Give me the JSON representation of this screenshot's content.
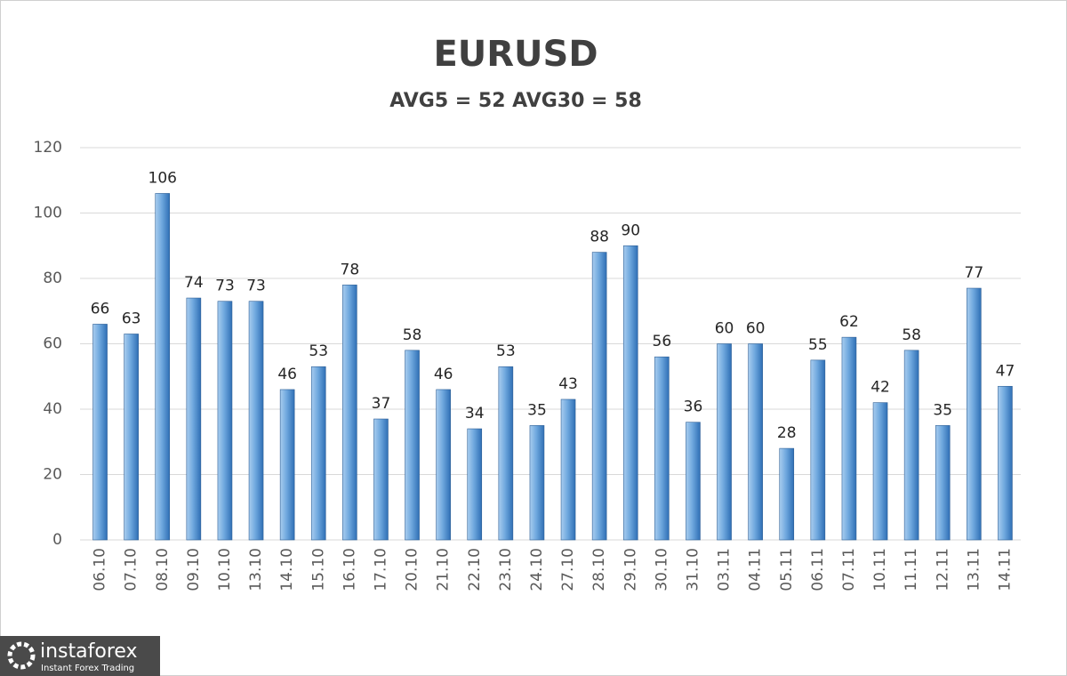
{
  "chart_data": {
    "type": "bar",
    "title": "EURUSD",
    "subtitle": "AVG5 = 52 AVG30 = 58",
    "categories": [
      "06.10",
      "07.10",
      "08.10",
      "09.10",
      "10.10",
      "13.10",
      "14.10",
      "15.10",
      "16.10",
      "17.10",
      "20.10",
      "21.10",
      "22.10",
      "23.10",
      "24.10",
      "27.10",
      "28.10",
      "29.10",
      "30.10",
      "31.10",
      "03.11",
      "04.11",
      "05.11",
      "06.11",
      "07.11",
      "10.11",
      "11.11",
      "12.11",
      "13.11",
      "14.11"
    ],
    "values": [
      66,
      63,
      106,
      74,
      73,
      73,
      46,
      53,
      78,
      37,
      58,
      46,
      34,
      53,
      35,
      43,
      88,
      90,
      56,
      36,
      60,
      60,
      28,
      55,
      62,
      42,
      58,
      35,
      77,
      47
    ],
    "color": "#5b9bd5",
    "ylim": [
      0,
      120
    ],
    "yticks": [
      0,
      20,
      40,
      60,
      80,
      100,
      120
    ],
    "grid": true
  },
  "logo": {
    "brand": "instaforex",
    "tagline": "Instant Forex Trading"
  }
}
